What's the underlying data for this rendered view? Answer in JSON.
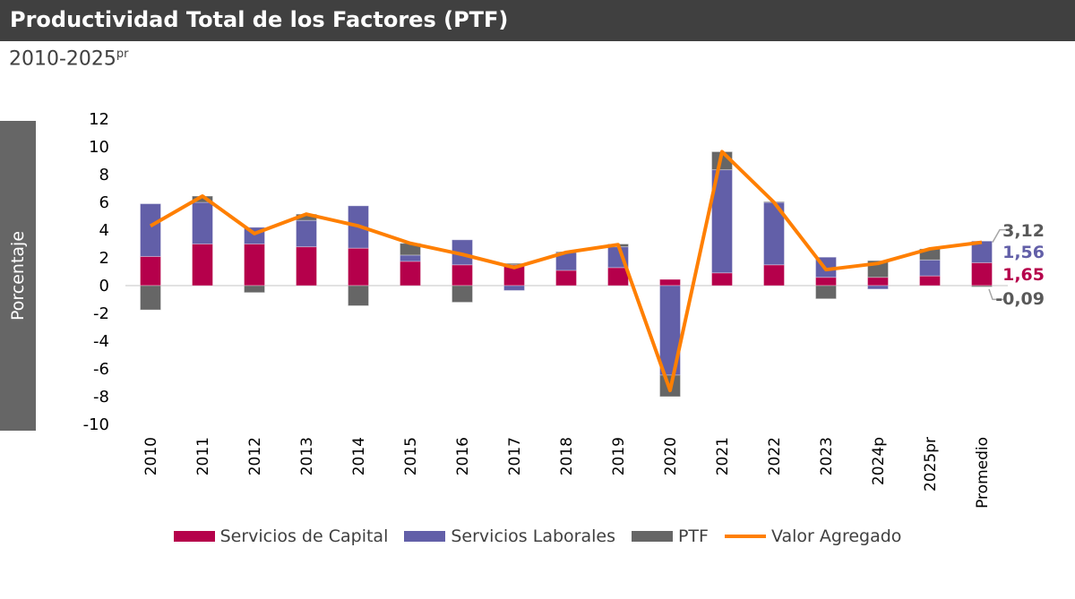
{
  "header": {
    "title": "Productividad Total de los Factores (PTF)",
    "subtitle": "2010-2025",
    "subtitle_sup": "pr"
  },
  "chart_data": {
    "type": "bar",
    "stacked": true,
    "ylabel": "Porcentaje",
    "ylim": [
      -10,
      12
    ],
    "yticks": [
      12,
      10,
      8,
      6,
      4,
      2,
      0,
      -2,
      -4,
      -6,
      -8,
      -10
    ],
    "grid": false,
    "legend_position": "bottom",
    "categories": [
      "2010",
      "2011",
      "2012",
      "2013",
      "2014",
      "2015",
      "2016",
      "2017",
      "2018",
      "2019",
      "2020",
      "2021",
      "2022",
      "2023",
      "2024p",
      "2025pr",
      "Promedio"
    ],
    "series": [
      {
        "name": "Servicios de Capital",
        "type": "bar",
        "color": "#B5004B",
        "values": [
          2.1,
          3.0,
          3.0,
          2.8,
          2.7,
          1.75,
          1.5,
          1.5,
          1.1,
          1.3,
          0.45,
          0.92,
          1.5,
          0.6,
          0.6,
          0.7,
          1.65
        ]
      },
      {
        "name": "Servicios Laborales",
        "type": "bar",
        "color": "#625FA8",
        "values": [
          3.8,
          3.0,
          1.2,
          1.9,
          3.05,
          0.45,
          1.8,
          -0.35,
          1.3,
          1.5,
          -6.45,
          7.43,
          4.5,
          1.45,
          -0.25,
          1.15,
          1.56
        ]
      },
      {
        "name": "PTF",
        "type": "bar",
        "color": "#666666",
        "values": [
          -1.75,
          0.45,
          -0.5,
          0.45,
          -1.45,
          0.85,
          -1.2,
          0.1,
          0.05,
          0.2,
          -1.55,
          1.3,
          0.05,
          -0.95,
          1.2,
          0.8,
          -0.09
        ]
      },
      {
        "name": "Valor Agregado",
        "type": "line",
        "color": "#FF7F00",
        "values": [
          4.3,
          6.45,
          3.75,
          5.15,
          4.3,
          3.05,
          2.25,
          1.3,
          2.4,
          2.95,
          -7.55,
          9.65,
          6.0,
          1.15,
          1.6,
          2.65,
          3.12
        ]
      }
    ],
    "annotations": [
      {
        "text": "3,12",
        "color": "#595959"
      },
      {
        "text": "1,56",
        "color": "#625FA8"
      },
      {
        "text": "1,65",
        "color": "#B5004B"
      },
      {
        "text": "-0,09",
        "color": "#595959"
      }
    ]
  }
}
